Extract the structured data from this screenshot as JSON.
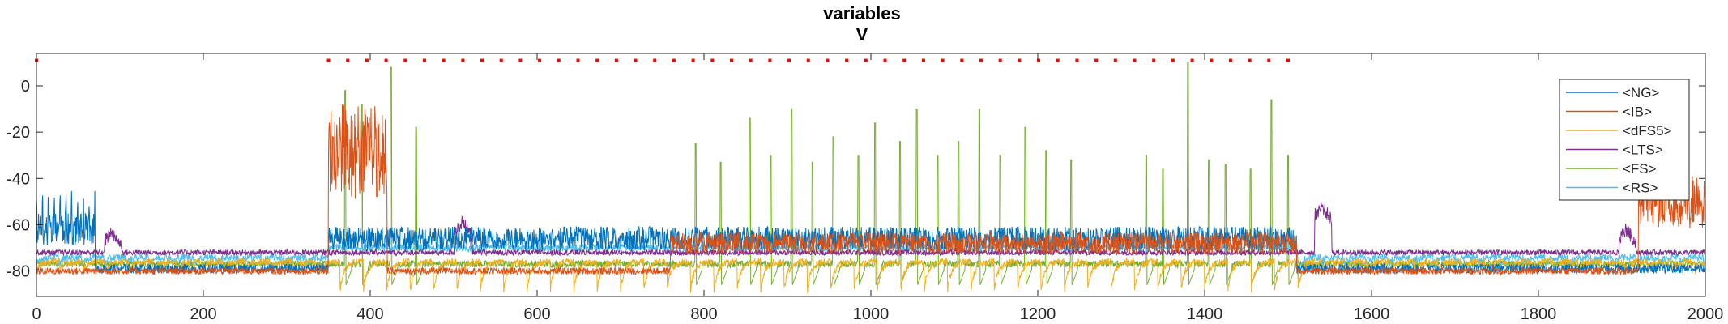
{
  "chart_data": {
    "type": "line",
    "title": "variables",
    "subtitle": "V",
    "xlabel": "",
    "ylabel": "",
    "xlim": [
      0,
      2000
    ],
    "ylim": [
      -91,
      14
    ],
    "xticks": [
      0,
      200,
      400,
      600,
      800,
      1000,
      1200,
      1400,
      1600,
      1800,
      2000
    ],
    "yticks": [
      -80,
      -60,
      -40,
      -20,
      0
    ],
    "grid": false,
    "legend_position": "top-right",
    "series": [
      {
        "name": "<NG>",
        "color": "#0072BD",
        "baseline": -79,
        "noise": 2.0,
        "spike_start": 0,
        "spike_end": 70,
        "spike_period": 7,
        "spike_peak": -45,
        "burst_level": -62,
        "bursts": [
          [
            350,
            1510,
            -66
          ]
        ]
      },
      {
        "name": "<IB>",
        "color": "#D95319",
        "baseline": -80,
        "noise": 1.5,
        "bursts": [
          [
            350,
            420,
            -28
          ],
          [
            760,
            1510,
            -68
          ],
          [
            1920,
            2000,
            -50
          ]
        ]
      },
      {
        "name": "<dFS5>",
        "color": "#EDB120",
        "baseline": -76,
        "noise": 1.5,
        "osc_period": 28,
        "osc_depth": 12
      },
      {
        "name": "<LTS>",
        "color": "#7E2F8E",
        "baseline": -72,
        "noise": 1.2,
        "events": [
          [
            90,
            -63
          ],
          [
            510,
            -59
          ],
          [
            1540,
            -52
          ],
          [
            1905,
            -62
          ]
        ]
      },
      {
        "name": "<FS>",
        "color": "#77AC30",
        "baseline": -77,
        "noise": 1.5,
        "spikes": [
          [
            370,
            -2
          ],
          [
            390,
            -8
          ],
          [
            425,
            8
          ],
          [
            455,
            -18
          ],
          [
            790,
            -25
          ],
          [
            820,
            -33
          ],
          [
            855,
            -14
          ],
          [
            880,
            -30
          ],
          [
            905,
            -10
          ],
          [
            930,
            -33
          ],
          [
            955,
            -22
          ],
          [
            985,
            -30
          ],
          [
            1005,
            -16
          ],
          [
            1035,
            -24
          ],
          [
            1055,
            -10
          ],
          [
            1080,
            -30
          ],
          [
            1105,
            -24
          ],
          [
            1130,
            -10
          ],
          [
            1155,
            -30
          ],
          [
            1185,
            -18
          ],
          [
            1210,
            -28
          ],
          [
            1240,
            -32
          ],
          [
            1330,
            -30
          ],
          [
            1350,
            -36
          ],
          [
            1380,
            10
          ],
          [
            1405,
            -32
          ],
          [
            1425,
            -34
          ],
          [
            1455,
            -36
          ],
          [
            1480,
            -6
          ],
          [
            1500,
            -30
          ]
        ]
      },
      {
        "name": "<RS>",
        "color": "#4DBEEE",
        "baseline": -74,
        "noise": 1.6,
        "osc_period": 27,
        "osc_depth": 10,
        "bursts": [
          [
            350,
            1510,
            -70
          ]
        ]
      }
    ],
    "markers": {
      "color": "#FF0000",
      "x_start": 350,
      "x_end": 1500,
      "step": 23,
      "y": 11,
      "extra_x": [
        0
      ]
    }
  }
}
